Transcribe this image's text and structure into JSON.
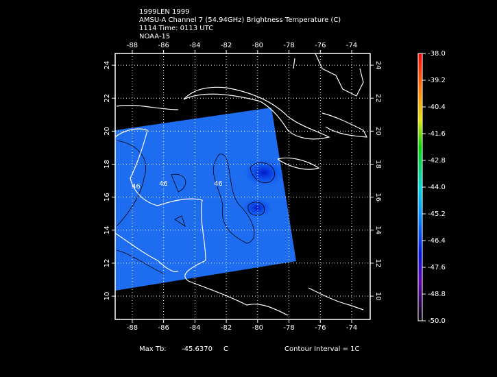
{
  "header": {
    "lines": [
      "1999LEN 1999",
      "AMSU-A Channel 7 (54.94GHz) Brightness Temperature (C)",
      "1114 Time: 0113 UTC",
      "NOAA-15"
    ]
  },
  "map": {
    "lon_range": [
      -89.09,
      -72.82
    ],
    "lat_range": [
      8.59,
      24.71
    ],
    "lon_ticks": [
      -88,
      -86,
      -84,
      -82,
      -80,
      -78,
      -76,
      -74
    ],
    "lat_ticks": [
      10,
      12,
      14,
      16,
      18,
      20,
      22,
      24
    ],
    "contour_labels": [
      "46",
      "46",
      "46"
    ]
  },
  "colorbar": {
    "range": [
      -50,
      -38
    ],
    "ticks": [
      {
        "value": -38,
        "label": "-38.0"
      },
      {
        "value": -39.2,
        "label": "-39.2"
      },
      {
        "value": -40.4,
        "label": "-40.4"
      },
      {
        "value": -41.6,
        "label": "-41.6"
      },
      {
        "value": -42.8,
        "label": "-42.8"
      },
      {
        "value": -44,
        "label": "-44.0"
      },
      {
        "value": -45.2,
        "label": "-45.2"
      },
      {
        "value": -46.4,
        "label": "-46.4"
      },
      {
        "value": -47.6,
        "label": "-47.6"
      },
      {
        "value": -48.8,
        "label": "-48.8"
      },
      {
        "value": -50,
        "label": "-50.0"
      }
    ]
  },
  "footer": {
    "max_label": "Max Tb:",
    "max_value": "-45.6370",
    "max_unit": "C",
    "contour_interval": "Contour Interval = 1C"
  }
}
